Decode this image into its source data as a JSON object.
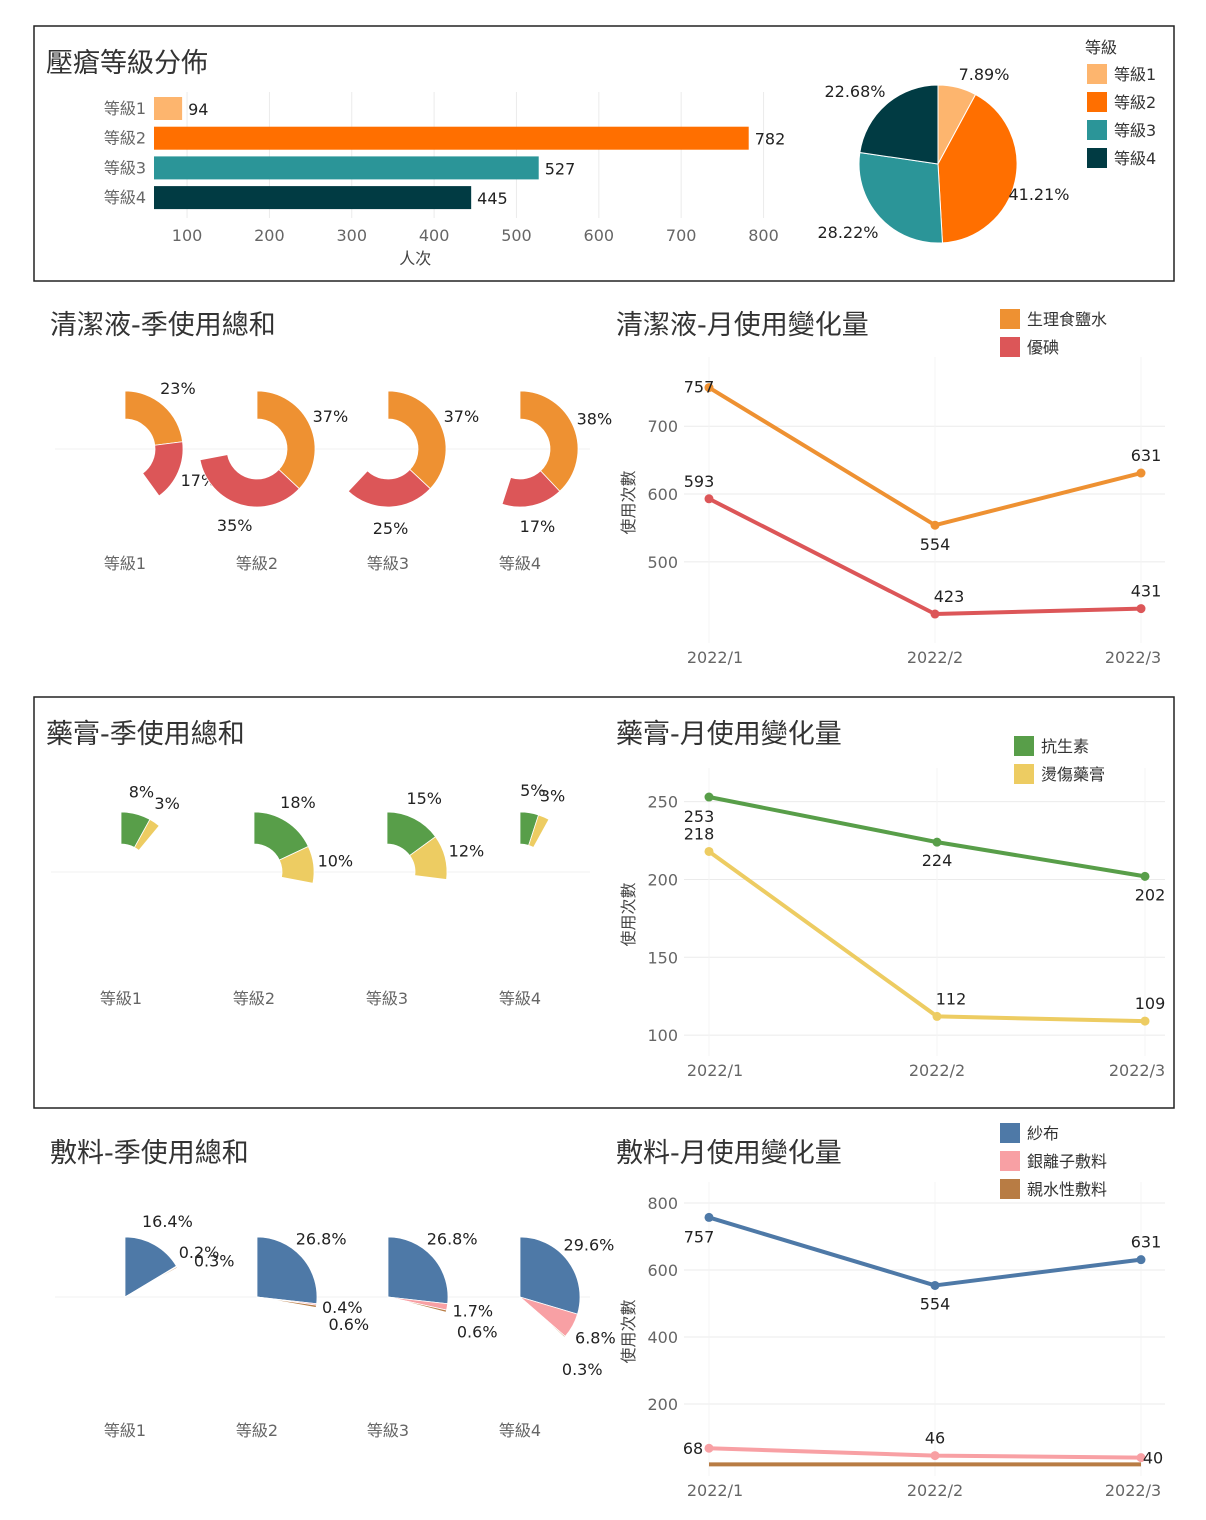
{
  "colors": {
    "grade1": "#FDB56E",
    "grade2": "#FF6F00",
    "grade3": "#2B9598",
    "grade4": "#013B43",
    "saline": "#EE9132",
    "iodine": "#DC5658",
    "antibiotic": "#589E49",
    "burn": "#EDCC62",
    "gauze": "#4E79A7",
    "silver": "#F8A0A4",
    "hydro": "#B87C44"
  },
  "chart_data": [
    {
      "id": "grade-bar",
      "type": "bar",
      "orientation": "horizontal",
      "title": "壓瘡等級分佈",
      "categories": [
        "等級1",
        "等級2",
        "等級3",
        "等級4"
      ],
      "values": [
        94,
        782,
        527,
        445
      ],
      "xlabel": "人次",
      "ylabel": "",
      "xlim": [
        55,
        820
      ],
      "xticks": [
        "100",
        "200",
        "300",
        "400",
        "500",
        "600",
        "700",
        "800"
      ],
      "tick_values": [
        100,
        200,
        300,
        400,
        500,
        600,
        700,
        800
      ]
    },
    {
      "id": "grade-pie",
      "type": "pie",
      "title": "",
      "legend_title": "等級",
      "categories": [
        "等級1",
        "等級2",
        "等級3",
        "等級4"
      ],
      "values": [
        7.89,
        41.21,
        28.22,
        22.68
      ],
      "labels": [
        "7.89%",
        "41.21%",
        "28.22%",
        "22.68%"
      ]
    },
    {
      "id": "cleanser-quarter",
      "type": "pie",
      "title": "清潔液-季使用總和",
      "categories": [
        "等級1",
        "等級2",
        "等級3",
        "等級4"
      ],
      "series": [
        {
          "name": "生理食鹽水",
          "values": [
            23,
            37,
            37,
            38
          ],
          "labels": [
            "23%",
            "37%",
            "37%",
            "38%"
          ]
        },
        {
          "name": "優碘",
          "values": [
            17,
            35,
            25,
            17
          ],
          "labels": [
            "17%",
            "35%",
            "25%",
            "17%"
          ]
        }
      ]
    },
    {
      "id": "cleanser-month",
      "type": "line",
      "title": "清潔液-月使用變化量",
      "x": [
        "2022/1",
        "2022/2",
        "2022/3"
      ],
      "ylabel": "使用次數",
      "ylim": [
        395,
        780
      ],
      "yticks": [
        "500",
        "600",
        "700"
      ],
      "ytick_values": [
        500,
        600,
        700
      ],
      "series": [
        {
          "name": "生理食鹽水",
          "values": [
            757,
            554,
            631
          ],
          "labels": [
            "757",
            "554",
            "631"
          ]
        },
        {
          "name": "優碘",
          "values": [
            593,
            423,
            431
          ],
          "labels": [
            "593",
            "423",
            "431"
          ]
        }
      ]
    },
    {
      "id": "ointment-quarter",
      "type": "pie",
      "title": "藥膏-季使用總和",
      "categories": [
        "等級1",
        "等級2",
        "等級3",
        "等級4"
      ],
      "series": [
        {
          "name": "抗生素",
          "values": [
            8,
            18,
            15,
            5
          ],
          "labels": [
            "8%",
            "18%",
            "15%",
            "5%"
          ]
        },
        {
          "name": "燙傷藥膏",
          "values": [
            3,
            10,
            12,
            3
          ],
          "labels": [
            "3%",
            "10%",
            "12%",
            "3%"
          ]
        }
      ]
    },
    {
      "id": "ointment-month",
      "type": "line",
      "title": "藥膏-月使用變化量",
      "x": [
        "2022/1",
        "2022/2",
        "2022/3"
      ],
      "ylabel": "使用次數",
      "ylim": [
        93,
        262
      ],
      "yticks": [
        "100",
        "150",
        "200",
        "250"
      ],
      "ytick_values": [
        100,
        150,
        200,
        250
      ],
      "series": [
        {
          "name": "抗生素",
          "values": [
            253,
            224,
            202
          ],
          "labels": [
            "253",
            "224",
            "202"
          ]
        },
        {
          "name": "燙傷藥膏",
          "values": [
            218,
            112,
            109
          ],
          "labels": [
            "218",
            "112",
            "109"
          ]
        }
      ]
    },
    {
      "id": "dressing-quarter",
      "type": "pie",
      "title": "敷料-季使用總和",
      "categories": [
        "等級1",
        "等級2",
        "等級3",
        "等級4"
      ],
      "series": [
        {
          "name": "紗布",
          "values": [
            16.4,
            26.8,
            26.8,
            29.6
          ],
          "labels": [
            "16.4%",
            "26.8%",
            "26.8%",
            "29.6%"
          ]
        },
        {
          "name": "銀離子敷料",
          "values": [
            0.2,
            0.4,
            1.7,
            6.8
          ],
          "labels": [
            "0.2%",
            "0.4%",
            "1.7%",
            "6.8%"
          ]
        },
        {
          "name": "親水性敷料",
          "values": [
            0.3,
            0.6,
            0.6,
            0.3
          ],
          "labels": [
            "0.3%",
            "0.6%",
            "0.6%",
            "0.3%"
          ]
        }
      ]
    },
    {
      "id": "dressing-month",
      "type": "line",
      "title": "敷料-月使用變化量",
      "x": [
        "2022/1",
        "2022/2",
        "2022/3"
      ],
      "ylabel": "使用次數",
      "ylim": [
        15,
        818
      ],
      "yticks": [
        "200",
        "400",
        "600",
        "800"
      ],
      "ytick_values": [
        200,
        400,
        600,
        800
      ],
      "series": [
        {
          "name": "紗布",
          "values": [
            757,
            554,
            631
          ],
          "labels": [
            "757",
            "554",
            "631"
          ]
        },
        {
          "name": "銀離子敷料",
          "values": [
            68,
            46,
            40
          ],
          "labels": [
            "68",
            "46",
            "40"
          ]
        },
        {
          "name": "親水性敷料",
          "values": [
            20,
            20,
            20
          ],
          "labels": [
            "",
            "",
            ""
          ]
        }
      ]
    }
  ]
}
